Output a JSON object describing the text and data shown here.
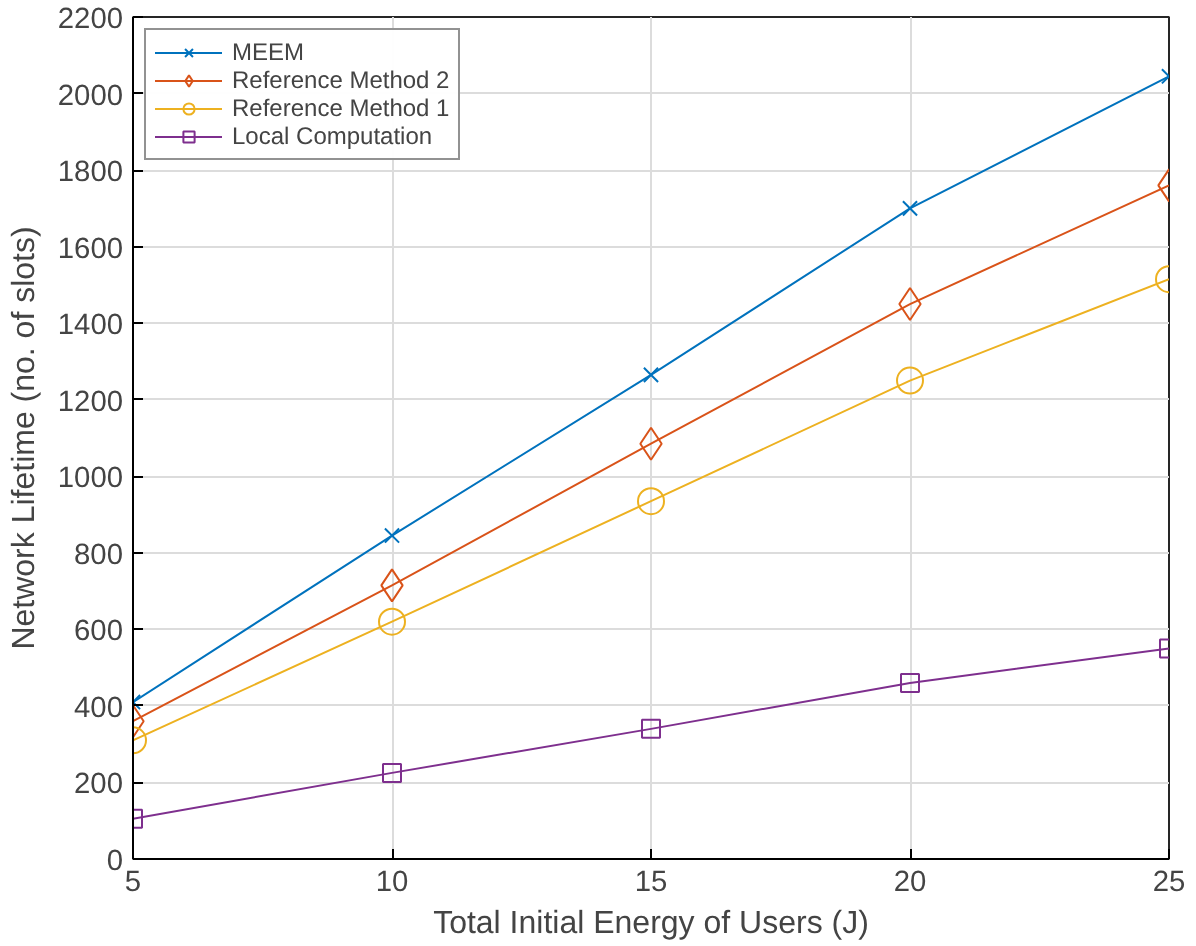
{
  "chart_data": {
    "type": "line",
    "xlabel": "Total Initial Energy of Users (J)",
    "ylabel": "Network Lifetime (no. of slots)",
    "x": [
      5,
      10,
      15,
      20,
      25
    ],
    "series": [
      {
        "name": "MEEM",
        "color": "#0072bd",
        "marker": "cross",
        "values": [
          410,
          845,
          1265,
          1700,
          2045
        ]
      },
      {
        "name": "Reference Method 2",
        "color": "#d95319",
        "marker": "diamond",
        "values": [
          360,
          715,
          1085,
          1450,
          1760
        ]
      },
      {
        "name": "Reference Method 1",
        "color": "#edb120",
        "marker": "circle",
        "values": [
          310,
          620,
          935,
          1250,
          1515
        ]
      },
      {
        "name": "Local Computation",
        "color": "#7e2f8e",
        "marker": "square",
        "values": [
          105,
          225,
          340,
          460,
          550
        ]
      }
    ],
    "xlim": [
      5,
      25
    ],
    "xticks": [
      5,
      10,
      15,
      20,
      25
    ],
    "ylim": [
      0,
      2200
    ],
    "yticks": [
      0,
      200,
      400,
      600,
      800,
      1000,
      1200,
      1400,
      1600,
      1800,
      2000,
      2200
    ],
    "grid": true,
    "legend": "top left",
    "line_style": "solid"
  }
}
